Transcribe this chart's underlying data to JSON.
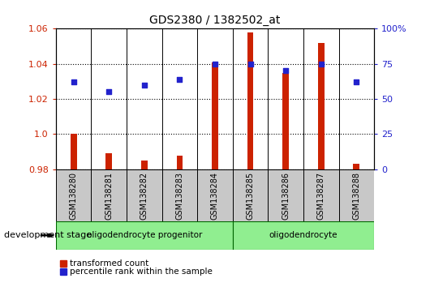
{
  "title": "GDS2380 / 1382502_at",
  "samples": [
    "GSM138280",
    "GSM138281",
    "GSM138282",
    "GSM138283",
    "GSM138284",
    "GSM138285",
    "GSM138286",
    "GSM138287",
    "GSM138288"
  ],
  "transformed_count": [
    1.0,
    0.989,
    0.985,
    0.988,
    1.041,
    1.058,
    1.035,
    1.052,
    0.983
  ],
  "percentile_rank": [
    62,
    55,
    60,
    64,
    75,
    75,
    70,
    75,
    62
  ],
  "ylim_left": [
    0.98,
    1.06
  ],
  "ylim_right": [
    0,
    100
  ],
  "yticks_left": [
    0.98,
    1.0,
    1.02,
    1.04,
    1.06
  ],
  "yticks_right": [
    0,
    25,
    50,
    75,
    100
  ],
  "ytick_labels_right": [
    "0",
    "25",
    "50",
    "75",
    "100%"
  ],
  "bar_color": "#cc2200",
  "dot_color": "#2222cc",
  "bar_baseline": 0.98,
  "bar_width": 0.18,
  "groups": [
    {
      "label": "oligodendrocyte progenitor",
      "start": 0,
      "end": 4,
      "color": "#90ee90"
    },
    {
      "label": "oligodendrocyte",
      "start": 5,
      "end": 8,
      "color": "#90ee90"
    }
  ],
  "group_label_prefix": "development stage",
  "legend_items": [
    {
      "label": "transformed count",
      "color": "#cc2200"
    },
    {
      "label": "percentile rank within the sample",
      "color": "#2222cc"
    }
  ],
  "tick_label_color_left": "#cc2200",
  "tick_label_color_right": "#2222cc",
  "grid_color": "black",
  "background_color": "white",
  "xlabel_area_color": "#c8c8c8",
  "group_band_color": "#90ee90",
  "group_band_edge": "#006600"
}
